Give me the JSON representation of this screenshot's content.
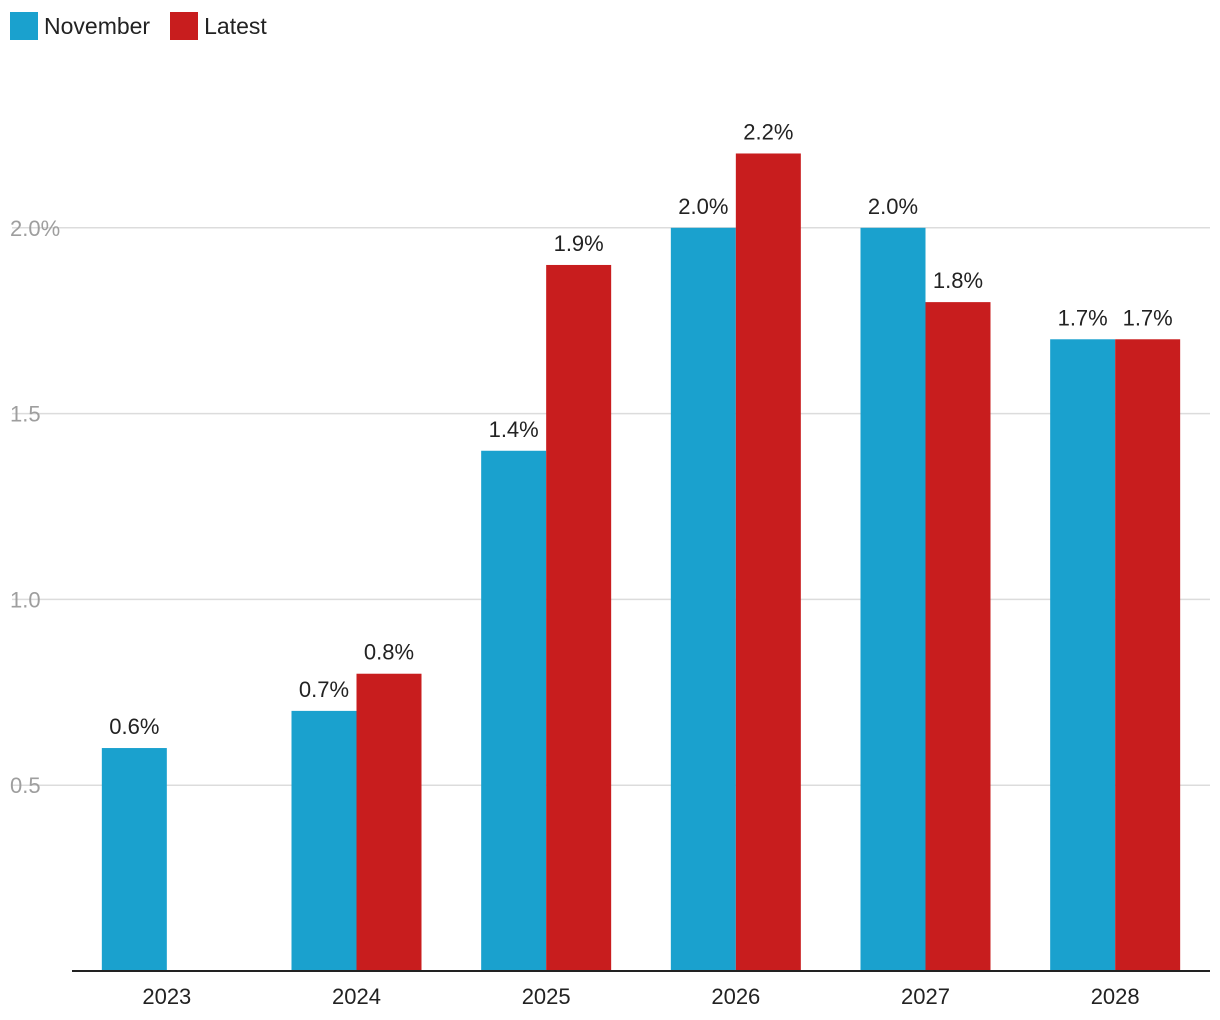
{
  "chart_data": {
    "type": "bar",
    "categories": [
      "2023",
      "2024",
      "2025",
      "2026",
      "2027",
      "2028"
    ],
    "series": [
      {
        "name": "November",
        "color": "#1aa1ce",
        "values": [
          0.6,
          0.7,
          1.4,
          2.0,
          2.0,
          1.7
        ],
        "labels": [
          "0.6%",
          "0.7%",
          "1.4%",
          "2.0%",
          "2.0%",
          "1.7%"
        ]
      },
      {
        "name": "Latest",
        "color": "#c81d1e",
        "values": [
          null,
          0.8,
          1.9,
          2.2,
          1.8,
          1.7
        ],
        "labels": [
          null,
          "0.8%",
          "1.9%",
          "2.2%",
          "1.8%",
          "1.7%"
        ]
      }
    ],
    "yticks": [
      {
        "value": 0.5,
        "label": "0.5"
      },
      {
        "value": 1.0,
        "label": "1.0"
      },
      {
        "value": 1.5,
        "label": "1.5"
      },
      {
        "value": 2.0,
        "label": "2.0%"
      }
    ],
    "ylim": [
      0,
      2.5
    ],
    "title": "",
    "xlabel": "",
    "ylabel": "",
    "grid": true,
    "legend_position": "top-left"
  }
}
